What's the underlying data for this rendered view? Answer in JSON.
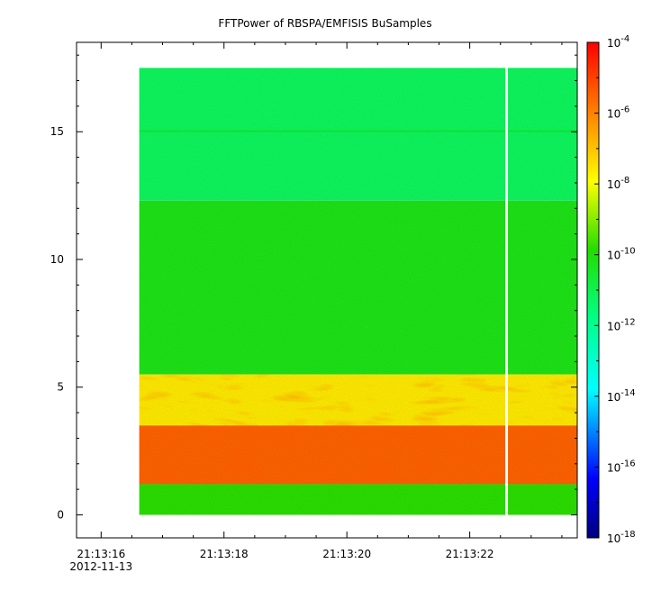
{
  "chart_data": {
    "type": "heatmap",
    "title": "FFTPower of RBSPA/EMFISIS  BuSamples",
    "xlabel": "",
    "ylabel": "",
    "x_ticks": [
      {
        "label": "21:13:16",
        "t": 16
      },
      {
        "label": "21:13:18",
        "t": 18
      },
      {
        "label": "21:13:20",
        "t": 20
      },
      {
        "label": "21:13:22",
        "t": 22
      }
    ],
    "x_date_label": "2012-11-13",
    "xlim_seconds": [
      15.6,
      23.75
    ],
    "data_time_range": [
      16.62,
      23.75
    ],
    "gap_time": 22.6,
    "y_ticks": [
      0,
      5,
      10,
      15
    ],
    "ylim": [
      -0.9,
      18.5
    ],
    "data_y_range": [
      0,
      17.5
    ],
    "colorbar": {
      "scale": "log",
      "range": [
        1e-18,
        0.0001
      ],
      "ticks": [
        {
          "base": "10",
          "exp": "-4",
          "value": -4
        },
        {
          "base": "10",
          "exp": "-6",
          "value": -6
        },
        {
          "base": "10",
          "exp": "-8",
          "value": -8
        },
        {
          "base": "10",
          "exp": "-10",
          "value": -10
        },
        {
          "base": "10",
          "exp": "-12",
          "value": -12
        },
        {
          "base": "10",
          "exp": "-14",
          "value": -14
        },
        {
          "base": "10",
          "exp": "-16",
          "value": -16
        },
        {
          "base": "10",
          "exp": "-18",
          "value": -18
        }
      ]
    },
    "bands": [
      {
        "y_range": [
          12.3,
          17.5
        ],
        "log_power": -11.2
      },
      {
        "y_range": [
          15.0,
          15.05
        ],
        "log_power": -10.4
      },
      {
        "y_range": [
          5.5,
          12.3
        ],
        "log_power": -10.2
      },
      {
        "y_range": [
          3.5,
          5.5
        ],
        "log_power": -7.6
      },
      {
        "y_range": [
          1.2,
          3.5
        ],
        "log_power": -5.5
      },
      {
        "y_range": [
          0,
          1.2
        ],
        "log_power": -9.8
      }
    ],
    "grid": false
  }
}
